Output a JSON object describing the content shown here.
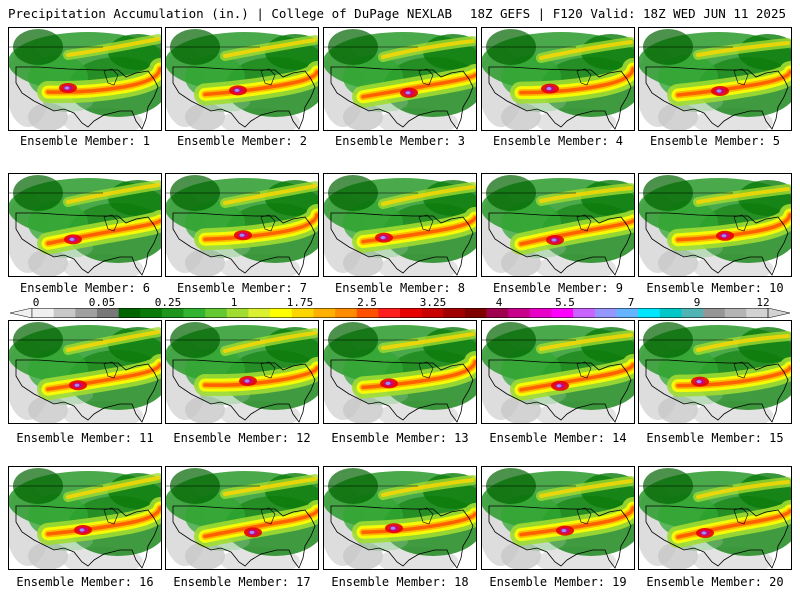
{
  "header": {
    "left": "Precipitation Accumulation (in.) | College of DuPage NEXLAB",
    "right": "18Z GEFS | F120 Valid: 18Z WED JUN 11 2025"
  },
  "member_prefix": "Ensemble Member: ",
  "members": [
    1,
    2,
    3,
    4,
    5,
    6,
    7,
    8,
    9,
    10,
    11,
    12,
    13,
    14,
    15,
    16,
    17,
    18,
    19,
    20
  ],
  "colorbar": {
    "tick_labels": [
      "0",
      "0.05",
      "0.25",
      "1",
      "1.75",
      "2.5",
      "3.25",
      "4",
      "5.5",
      "7",
      "9",
      "12"
    ],
    "colors": [
      "#f0f0f0",
      "#c8c8c8",
      "#a0a0a0",
      "#787878",
      "#006400",
      "#0a7a0a",
      "#1e961e",
      "#32b432",
      "#64c832",
      "#a0dc32",
      "#dcf032",
      "#ffff00",
      "#ffd700",
      "#ffb000",
      "#ff8c00",
      "#ff5000",
      "#ff1e1e",
      "#e60000",
      "#c80000",
      "#a00000",
      "#800000",
      "#a00050",
      "#c8008c",
      "#e600c8",
      "#ff00ff",
      "#c864ff",
      "#9696ff",
      "#64b4ff",
      "#00e6ff",
      "#00c8c8",
      "#50b4b4",
      "#969696",
      "#b4b4b4",
      "#d2d2d2"
    ]
  }
}
